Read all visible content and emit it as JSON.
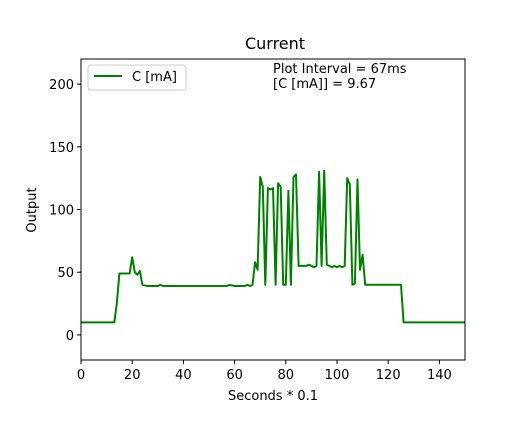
{
  "chart_data": {
    "type": "line",
    "title": "Current",
    "xlabel": "Seconds * 0.1",
    "ylabel": "Output",
    "xlim": [
      0,
      150
    ],
    "ylim": [
      -20,
      220
    ],
    "xticks": [
      0,
      20,
      40,
      60,
      80,
      100,
      120,
      140
    ],
    "yticks": [
      0,
      50,
      100,
      150,
      200
    ],
    "grid": false,
    "legend_position": "top-left",
    "annotations": [
      "Plot Interval = 67ms",
      "[C [mA]] = 9.67"
    ],
    "series": [
      {
        "name": "C [mA]",
        "color": "#008000",
        "points": [
          [
            0,
            10
          ],
          [
            13,
            10
          ],
          [
            14,
            25
          ],
          [
            15,
            49
          ],
          [
            19,
            49
          ],
          [
            20,
            62
          ],
          [
            21,
            50
          ],
          [
            22,
            48
          ],
          [
            23,
            51
          ],
          [
            24,
            40
          ],
          [
            26,
            39
          ],
          [
            30,
            39
          ],
          [
            31,
            40
          ],
          [
            32,
            39
          ],
          [
            57,
            39
          ],
          [
            58,
            40
          ],
          [
            60,
            39
          ],
          [
            64,
            39
          ],
          [
            65,
            40
          ],
          [
            66,
            39
          ],
          [
            67,
            40
          ],
          [
            68,
            58
          ],
          [
            69,
            52
          ],
          [
            70,
            126
          ],
          [
            71,
            118
          ],
          [
            72,
            40
          ],
          [
            73,
            117
          ],
          [
            74,
            116
          ],
          [
            75,
            117
          ],
          [
            76,
            40
          ],
          [
            77,
            121
          ],
          [
            78,
            118
          ],
          [
            79,
            40
          ],
          [
            80,
            40
          ],
          [
            81,
            115
          ],
          [
            82,
            40
          ],
          [
            83,
            126
          ],
          [
            84,
            128
          ],
          [
            85,
            55
          ],
          [
            88,
            55
          ],
          [
            89,
            56
          ],
          [
            91,
            54
          ],
          [
            92,
            55
          ],
          [
            93,
            130
          ],
          [
            94,
            55
          ],
          [
            95,
            131
          ],
          [
            96,
            56
          ],
          [
            97,
            55
          ],
          [
            98,
            54
          ],
          [
            99,
            55
          ],
          [
            100,
            54
          ],
          [
            101,
            55
          ],
          [
            102,
            54
          ],
          [
            103,
            55
          ],
          [
            104,
            125
          ],
          [
            105,
            120
          ],
          [
            106,
            40
          ],
          [
            107,
            41
          ],
          [
            108,
            124
          ],
          [
            109,
            52
          ],
          [
            110,
            64
          ],
          [
            111,
            40
          ],
          [
            124,
            40
          ],
          [
            125,
            40
          ],
          [
            126,
            10
          ],
          [
            150,
            10
          ]
        ]
      }
    ]
  }
}
